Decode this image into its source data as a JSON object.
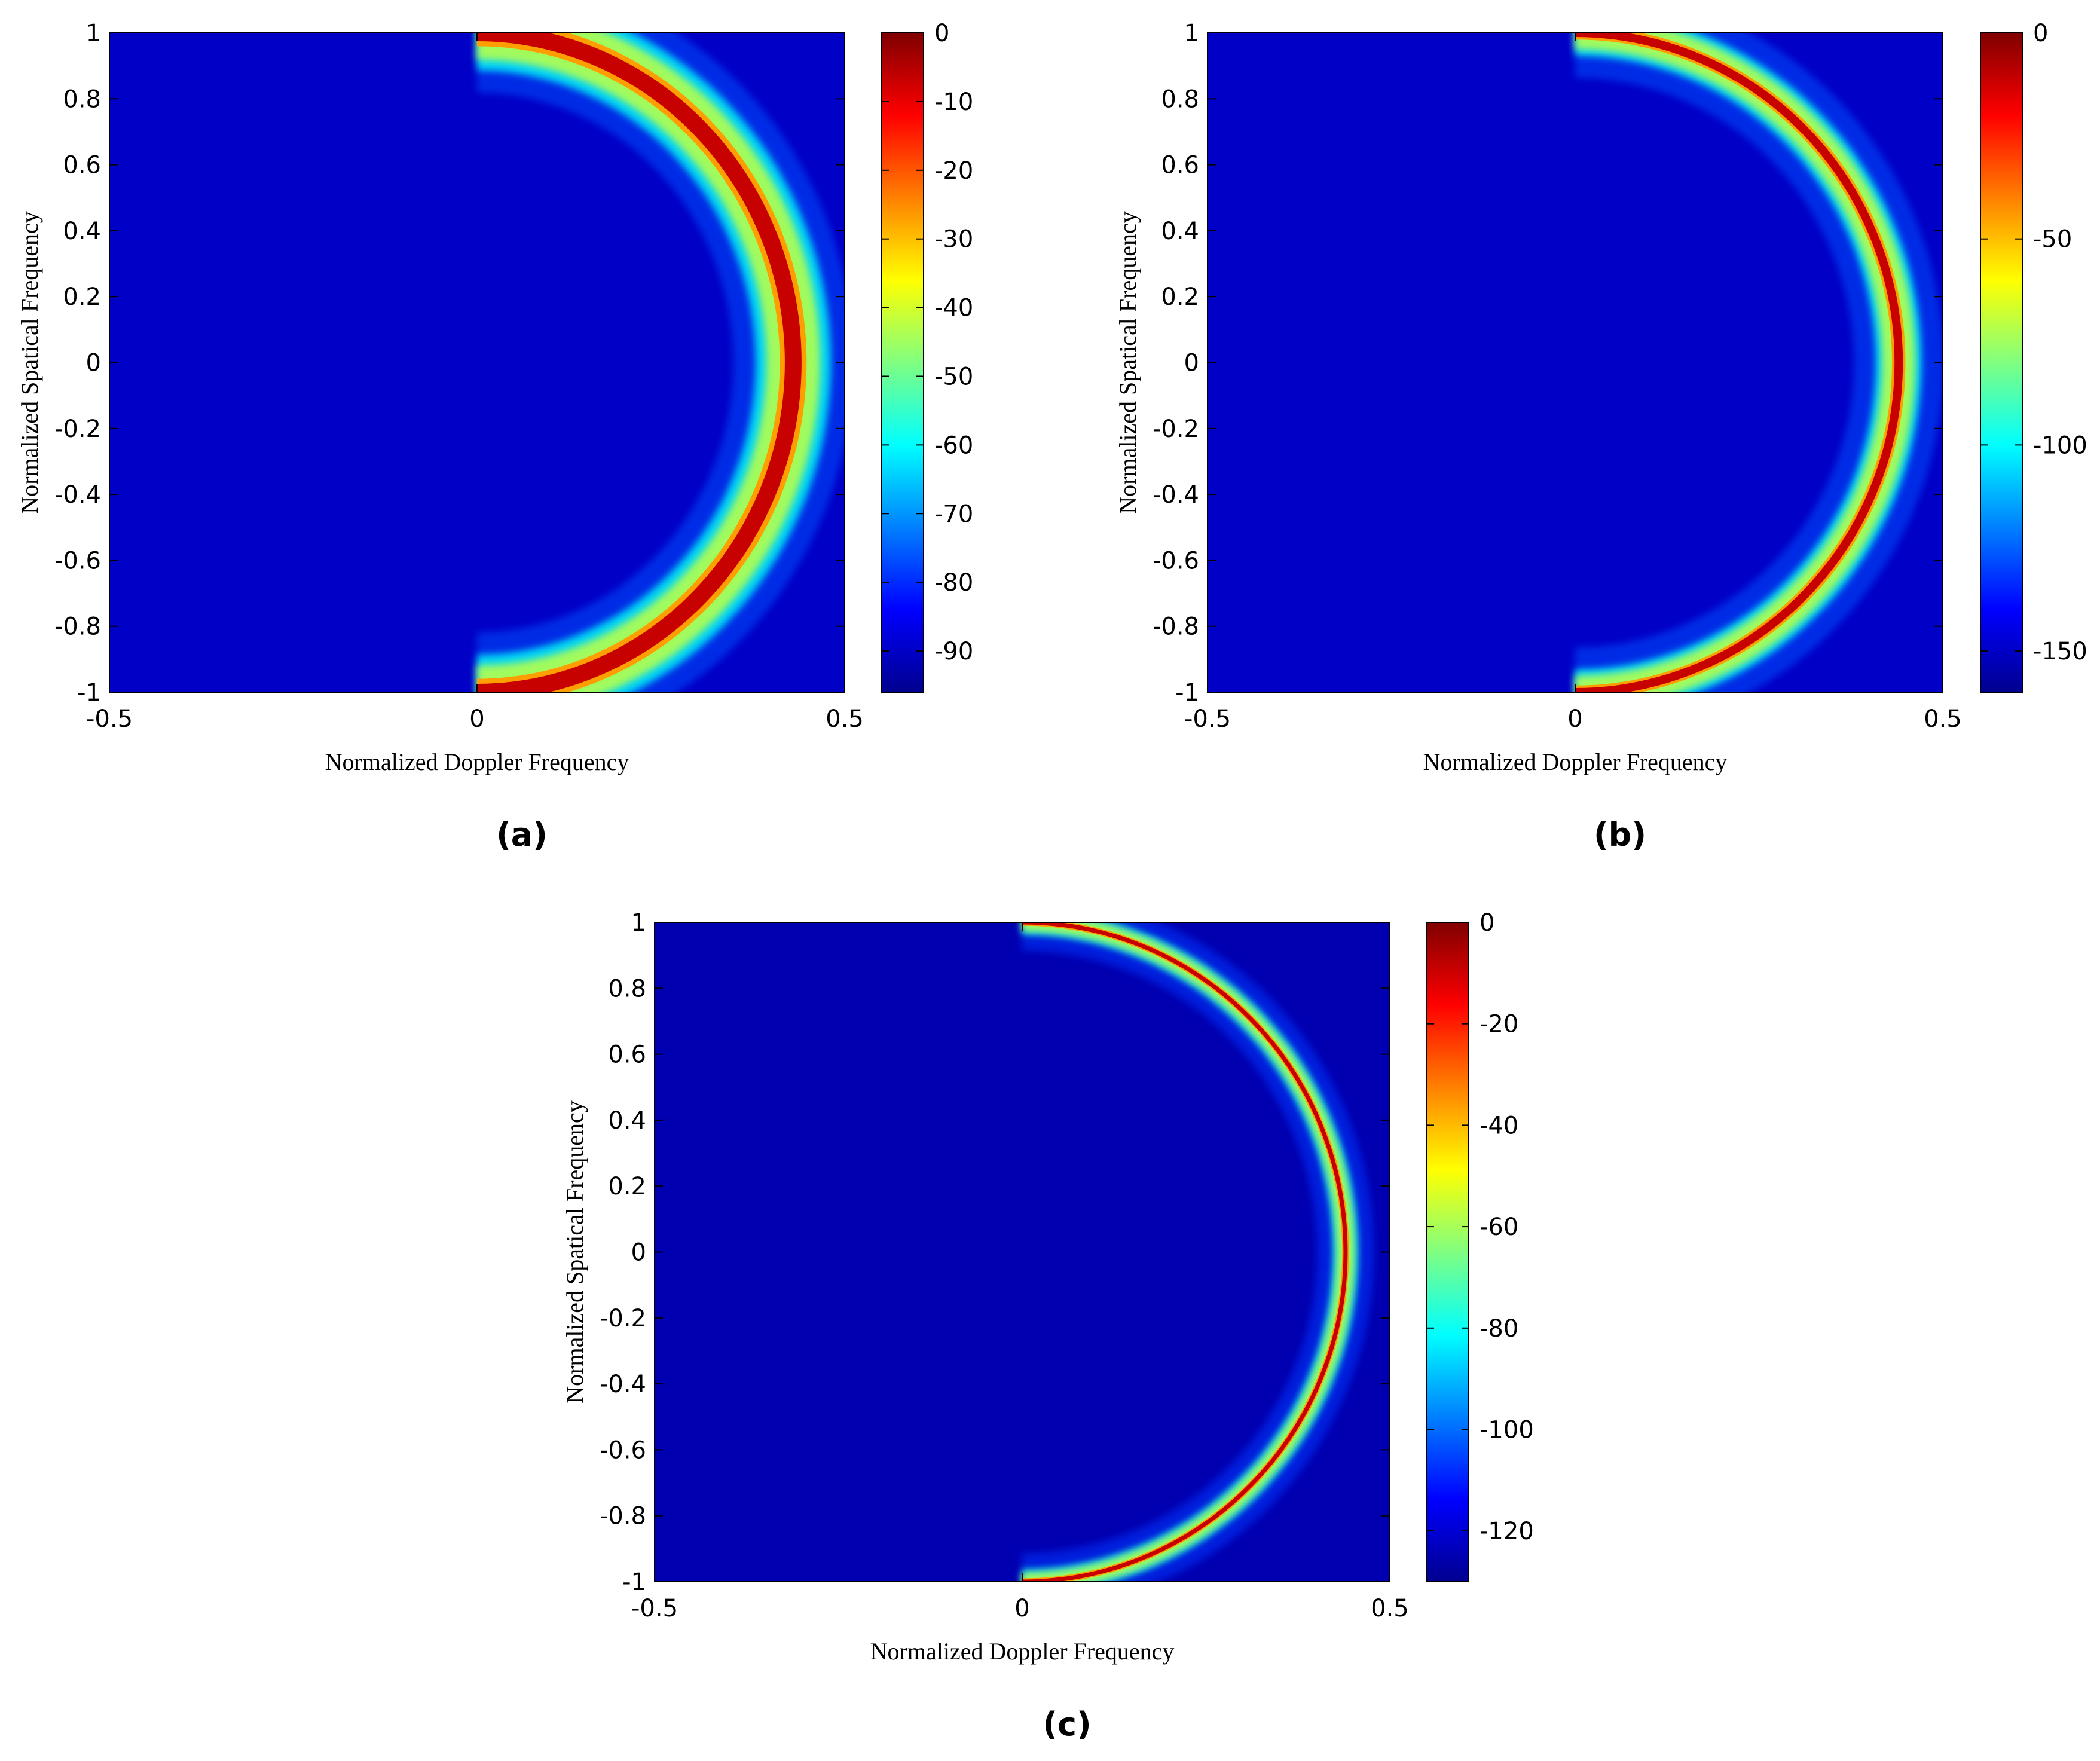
{
  "chart_data": [
    {
      "type": "heatmap",
      "panel_label": "(a)",
      "xlabel": "Normalized Doppler Frequency",
      "ylabel": "Normalized Spatical Frequency",
      "xlim": [
        -0.5,
        0.5
      ],
      "ylim": [
        -1,
        1
      ],
      "xticks": [
        -0.5,
        0,
        0.5
      ],
      "yticks": [
        1,
        0.8,
        0.6,
        0.4,
        0.2,
        0,
        -0.2,
        -0.4,
        -0.6,
        -0.8,
        -1
      ],
      "colorbar": {
        "range": [
          -96,
          0
        ],
        "ticks": [
          0,
          -10,
          -20,
          -30,
          -40,
          -50,
          -60,
          -70,
          -80,
          -90
        ]
      },
      "colormap": "jet",
      "ridge": {
        "shape": "half-ellipse",
        "doppler_peak": 0.43,
        "doppler_start": 0,
        "spatial_range": [
          -1,
          1
        ],
        "max_level_dB": 0,
        "width": "wide"
      },
      "background_level_dB": -90
    },
    {
      "type": "heatmap",
      "panel_label": "(b)",
      "xlabel": "Normalized Doppler Frequency",
      "ylabel": "Normalized Spatical Frequency",
      "xlim": [
        -0.5,
        0.5
      ],
      "ylim": [
        -1,
        1
      ],
      "xticks": [
        -0.5,
        0,
        0.5
      ],
      "yticks": [
        1,
        0.8,
        0.6,
        0.4,
        0.2,
        0,
        -0.2,
        -0.4,
        -0.6,
        -0.8,
        -1
      ],
      "colorbar": {
        "range": [
          -160,
          0
        ],
        "ticks": [
          0,
          -50,
          -100,
          -150
        ]
      },
      "colormap": "jet",
      "ridge": {
        "shape": "half-ellipse",
        "doppler_peak": 0.44,
        "doppler_start": 0,
        "spatial_range": [
          -1,
          1
        ],
        "max_level_dB": 0,
        "width": "medium"
      },
      "background_level_dB": -150
    },
    {
      "type": "heatmap",
      "panel_label": "(c)",
      "xlabel": "Normalized Doppler Frequency",
      "ylabel": "Normalized Spatical Frequency",
      "xlim": [
        -0.5,
        0.5
      ],
      "ylim": [
        -1,
        1
      ],
      "xticks": [
        -0.5,
        0,
        0.5
      ],
      "yticks": [
        1,
        0.8,
        0.6,
        0.4,
        0.2,
        0,
        -0.2,
        -0.4,
        -0.6,
        -0.8,
        -1
      ],
      "colorbar": {
        "range": [
          -130,
          0
        ],
        "ticks": [
          0,
          -20,
          -40,
          -60,
          -80,
          -100,
          -120
        ]
      },
      "colormap": "jet",
      "ridge": {
        "shape": "half-ellipse",
        "doppler_peak": 0.44,
        "doppler_start": 0,
        "spatial_range": [
          -1,
          1
        ],
        "max_level_dB": 0,
        "width": "narrow"
      },
      "background_level_dB": -125
    }
  ]
}
